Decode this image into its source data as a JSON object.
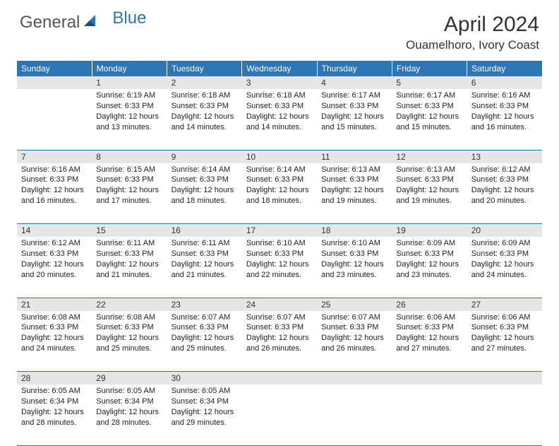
{
  "brand": {
    "part1": "General",
    "part2": "Blue"
  },
  "title": "April 2024",
  "location": "Ouamelhoro, Ivory Coast",
  "colors": {
    "header_bg": "#2e75b6",
    "header_text": "#ffffff",
    "daynum_bg": "#e6e6e6",
    "border": "#2e75b6",
    "text": "#333333",
    "background": "#ffffff"
  },
  "fonts": {
    "title_size": 30,
    "location_size": 17,
    "dayhead_size": 12,
    "cell_size": 11
  },
  "day_headers": [
    "Sunday",
    "Monday",
    "Tuesday",
    "Wednesday",
    "Thursday",
    "Friday",
    "Saturday"
  ],
  "weeks": [
    [
      null,
      {
        "n": "1",
        "sr": "6:19 AM",
        "ss": "6:33 PM",
        "dl": "12 hours and 13 minutes."
      },
      {
        "n": "2",
        "sr": "6:18 AM",
        "ss": "6:33 PM",
        "dl": "12 hours and 14 minutes."
      },
      {
        "n": "3",
        "sr": "6:18 AM",
        "ss": "6:33 PM",
        "dl": "12 hours and 14 minutes."
      },
      {
        "n": "4",
        "sr": "6:17 AM",
        "ss": "6:33 PM",
        "dl": "12 hours and 15 minutes."
      },
      {
        "n": "5",
        "sr": "6:17 AM",
        "ss": "6:33 PM",
        "dl": "12 hours and 15 minutes."
      },
      {
        "n": "6",
        "sr": "6:16 AM",
        "ss": "6:33 PM",
        "dl": "12 hours and 16 minutes."
      }
    ],
    [
      {
        "n": "7",
        "sr": "6:16 AM",
        "ss": "6:33 PM",
        "dl": "12 hours and 16 minutes."
      },
      {
        "n": "8",
        "sr": "6:15 AM",
        "ss": "6:33 PM",
        "dl": "12 hours and 17 minutes."
      },
      {
        "n": "9",
        "sr": "6:14 AM",
        "ss": "6:33 PM",
        "dl": "12 hours and 18 minutes."
      },
      {
        "n": "10",
        "sr": "6:14 AM",
        "ss": "6:33 PM",
        "dl": "12 hours and 18 minutes."
      },
      {
        "n": "11",
        "sr": "6:13 AM",
        "ss": "6:33 PM",
        "dl": "12 hours and 19 minutes."
      },
      {
        "n": "12",
        "sr": "6:13 AM",
        "ss": "6:33 PM",
        "dl": "12 hours and 19 minutes."
      },
      {
        "n": "13",
        "sr": "6:12 AM",
        "ss": "6:33 PM",
        "dl": "12 hours and 20 minutes."
      }
    ],
    [
      {
        "n": "14",
        "sr": "6:12 AM",
        "ss": "6:33 PM",
        "dl": "12 hours and 20 minutes."
      },
      {
        "n": "15",
        "sr": "6:11 AM",
        "ss": "6:33 PM",
        "dl": "12 hours and 21 minutes."
      },
      {
        "n": "16",
        "sr": "6:11 AM",
        "ss": "6:33 PM",
        "dl": "12 hours and 21 minutes."
      },
      {
        "n": "17",
        "sr": "6:10 AM",
        "ss": "6:33 PM",
        "dl": "12 hours and 22 minutes."
      },
      {
        "n": "18",
        "sr": "6:10 AM",
        "ss": "6:33 PM",
        "dl": "12 hours and 23 minutes."
      },
      {
        "n": "19",
        "sr": "6:09 AM",
        "ss": "6:33 PM",
        "dl": "12 hours and 23 minutes."
      },
      {
        "n": "20",
        "sr": "6:09 AM",
        "ss": "6:33 PM",
        "dl": "12 hours and 24 minutes."
      }
    ],
    [
      {
        "n": "21",
        "sr": "6:08 AM",
        "ss": "6:33 PM",
        "dl": "12 hours and 24 minutes."
      },
      {
        "n": "22",
        "sr": "6:08 AM",
        "ss": "6:33 PM",
        "dl": "12 hours and 25 minutes."
      },
      {
        "n": "23",
        "sr": "6:07 AM",
        "ss": "6:33 PM",
        "dl": "12 hours and 25 minutes."
      },
      {
        "n": "24",
        "sr": "6:07 AM",
        "ss": "6:33 PM",
        "dl": "12 hours and 26 minutes."
      },
      {
        "n": "25",
        "sr": "6:07 AM",
        "ss": "6:33 PM",
        "dl": "12 hours and 26 minutes."
      },
      {
        "n": "26",
        "sr": "6:06 AM",
        "ss": "6:33 PM",
        "dl": "12 hours and 27 minutes."
      },
      {
        "n": "27",
        "sr": "6:06 AM",
        "ss": "6:33 PM",
        "dl": "12 hours and 27 minutes."
      }
    ],
    [
      {
        "n": "28",
        "sr": "6:05 AM",
        "ss": "6:34 PM",
        "dl": "12 hours and 28 minutes."
      },
      {
        "n": "29",
        "sr": "6:05 AM",
        "ss": "6:34 PM",
        "dl": "12 hours and 28 minutes."
      },
      {
        "n": "30",
        "sr": "6:05 AM",
        "ss": "6:34 PM",
        "dl": "12 hours and 29 minutes."
      },
      null,
      null,
      null,
      null
    ]
  ],
  "labels": {
    "sunrise": "Sunrise:",
    "sunset": "Sunset:",
    "daylight": "Daylight:"
  }
}
